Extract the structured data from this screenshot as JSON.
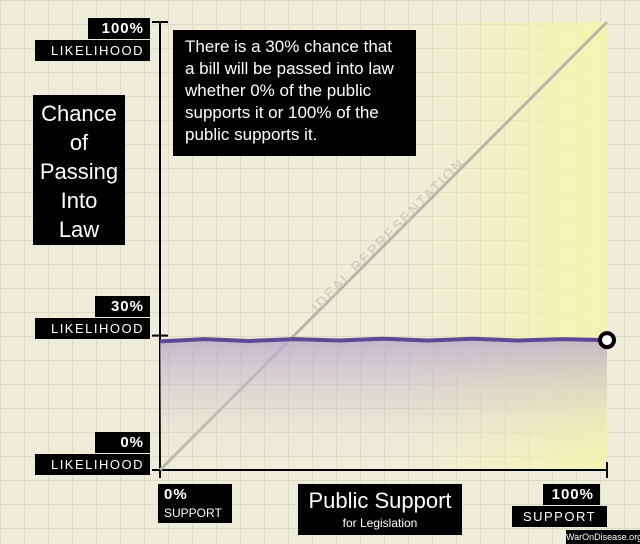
{
  "chart_data": {
    "type": "line",
    "annotation": "There is a 30% chance that a bill will be passed into law whether 0% of the public supports it or 100% of the public supports it.",
    "ylabel": "Chance of Passing Into Law",
    "xlabel": "Public Support",
    "xlabel_sub": "for Legislation",
    "ytick_caption": "LIKELIHOOD",
    "xtick_caption": "SUPPORT",
    "source": "WarOnDisease.org",
    "xlim": [
      0,
      100
    ],
    "ylim": [
      0,
      100
    ],
    "xticks": [
      {
        "value": 0,
        "label": "0%"
      },
      {
        "value": 100,
        "label": "100%"
      }
    ],
    "yticks": [
      {
        "value": 0,
        "label": "0%"
      },
      {
        "value": 30,
        "label": "30%"
      },
      {
        "value": 100,
        "label": "100%"
      }
    ],
    "series": [
      {
        "name": "IDEAL REPRESENTATION",
        "color": "#b8b6a8",
        "x": [
          0,
          100
        ],
        "values": [
          0,
          100
        ]
      },
      {
        "color": "#5b4a96",
        "x": [
          0,
          10,
          20,
          30,
          40,
          50,
          60,
          70,
          80,
          90,
          100
        ],
        "values": [
          28.7,
          29.2,
          28.8,
          29.2,
          28.9,
          29.3,
          28.9,
          29.3,
          28.9,
          29.2,
          29.0
        ]
      }
    ]
  }
}
